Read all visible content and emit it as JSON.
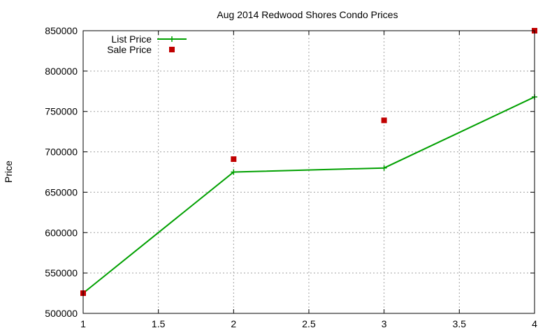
{
  "chart_data": {
    "type": "line",
    "title": "Aug 2014 Redwood Shores Condo Prices",
    "xlabel": "",
    "ylabel": "Price",
    "xlim": [
      1,
      4
    ],
    "ylim": [
      500000,
      850000
    ],
    "xticks": [
      "1",
      "1.5",
      "2",
      "2.5",
      "3",
      "3.5",
      "4"
    ],
    "yticks": [
      "500000",
      "550000",
      "600000",
      "650000",
      "700000",
      "750000",
      "800000",
      "850000"
    ],
    "grid": true,
    "legend_position": "top-left",
    "series": [
      {
        "name": "List Price",
        "style": "line+cross",
        "color": "#00a000",
        "x": [
          1,
          2,
          3,
          4
        ],
        "y": [
          525000,
          675000,
          680000,
          768000
        ]
      },
      {
        "name": "Sale Price",
        "style": "square-points",
        "color": "#c00000",
        "x": [
          1,
          2,
          3,
          4
        ],
        "y": [
          525000,
          691000,
          739000,
          850000
        ]
      }
    ]
  }
}
